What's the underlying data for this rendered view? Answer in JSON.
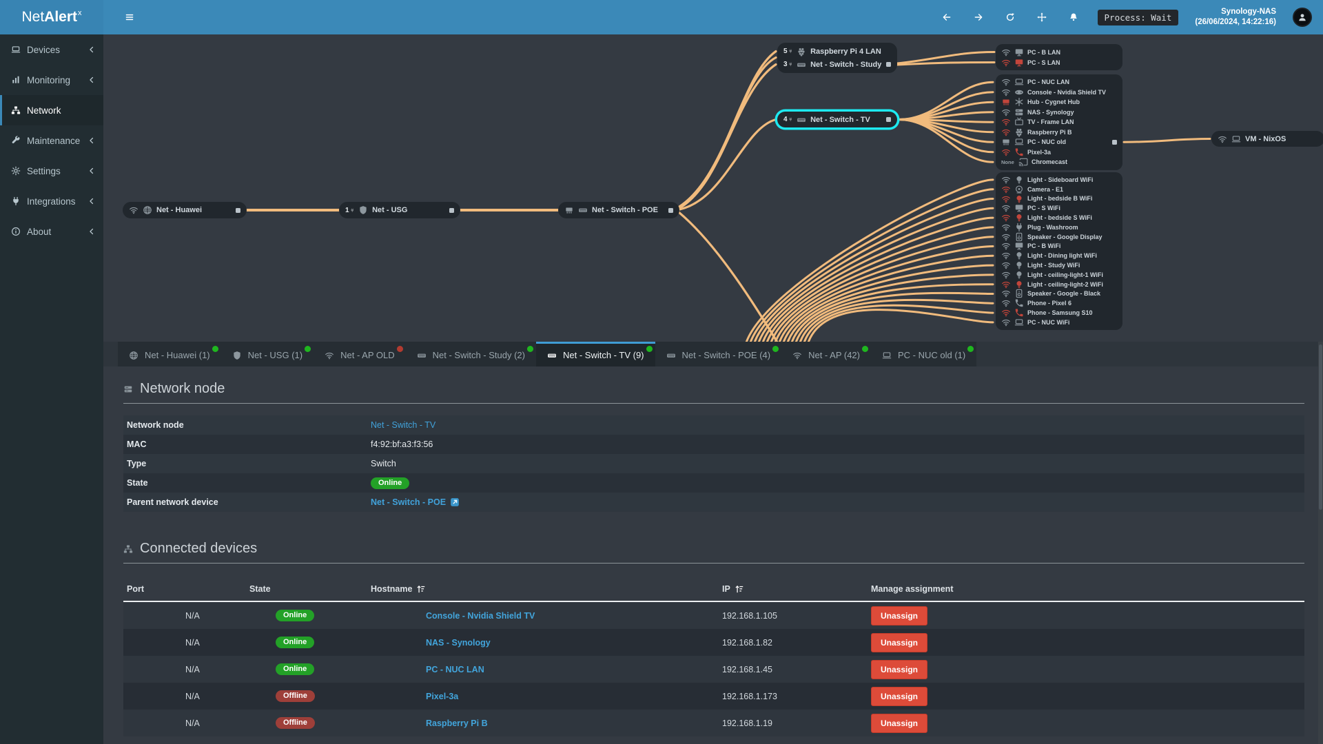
{
  "theme": {
    "accent": "#3b89b8",
    "edge": "#f1bb7d",
    "highlight": "#1de9f0",
    "online": "#23a127",
    "offline": "#9e3f39",
    "danger": "#dd4b39",
    "dot_green": "#1fb61f",
    "dot_red": "#b23b30",
    "icon_gray": "#8d979e",
    "icon_red": "#c2453b",
    "link": "#41a2da"
  },
  "navbar": {
    "brand_prefix": "Net",
    "brand_bold": "Alert",
    "brand_sup": "x",
    "actions": [
      "arrow-left",
      "arrow-right",
      "refresh",
      "move",
      "bell"
    ],
    "process_badge": "Process: Wait",
    "host": "Synology-NAS",
    "timestamp": "(26/06/2024, 14:22:16)"
  },
  "sidebar": {
    "items": [
      {
        "label": "Devices",
        "icon": "laptop",
        "chevron": true,
        "active": false
      },
      {
        "label": "Monitoring",
        "icon": "chart",
        "chevron": true,
        "active": false
      },
      {
        "label": "Network",
        "icon": "sitemap",
        "chevron": false,
        "active": true
      },
      {
        "label": "Maintenance",
        "icon": "wrench",
        "chevron": true,
        "active": false
      },
      {
        "label": "Settings",
        "icon": "gear",
        "chevron": true,
        "active": false
      },
      {
        "label": "Integrations",
        "icon": "plug",
        "chevron": true,
        "active": false
      },
      {
        "label": "About",
        "icon": "info",
        "chevron": true,
        "active": false
      }
    ]
  },
  "diagram": {
    "chain": [
      {
        "id": "huawei",
        "icons": [
          "wifi",
          "globe"
        ],
        "label": "Net - Huawei",
        "port": true
      },
      {
        "id": "usg",
        "count": "1",
        "icons": [
          "shield"
        ],
        "label": "Net - USG",
        "port": true
      },
      {
        "id": "poe",
        "icons": [
          "ethernet",
          "switch"
        ],
        "label": "Net - Switch - POE",
        "port": true
      }
    ],
    "stack": [
      {
        "count": "5",
        "icons": [
          "raspberry"
        ],
        "label": "Raspberry Pi 4 LAN",
        "port": false
      },
      {
        "count": "3",
        "icons": [
          "switch"
        ],
        "label": "Net - Switch - Study",
        "port": true
      }
    ],
    "tv": {
      "count": "4",
      "icons": [
        "switch"
      ],
      "label": "Net - Switch - TV",
      "port": true,
      "highlighted": true
    },
    "vm": {
      "icons": [
        "wifi",
        "laptop"
      ],
      "label": "VM - NixOS"
    },
    "groups": [
      {
        "id": "g1",
        "items": [
          {
            "conn": "wifi",
            "dev": "monitor",
            "label": "PC - B LAN"
          },
          {
            "conn": "wifi",
            "conn_red": true,
            "dev": "monitor",
            "dev_red": true,
            "label": "PC - S LAN"
          }
        ]
      },
      {
        "id": "g2",
        "items": [
          {
            "conn": "wifi",
            "dev": "laptop",
            "label": "PC - NUC LAN"
          },
          {
            "conn": "wifi",
            "dev": "controller",
            "label": "Console - Nvidia Shield TV"
          },
          {
            "conn": "ethernet",
            "conn_red": true,
            "dev": "hub",
            "label": "Hub - Cygnet Hub"
          },
          {
            "conn": "wifi",
            "dev": "nas",
            "label": "NAS - Synology"
          },
          {
            "conn": "wifi",
            "conn_red": true,
            "dev": "tv",
            "label": "TV - Frame LAN"
          },
          {
            "conn": "wifi",
            "conn_red": true,
            "dev": "raspberry",
            "label": "Raspberry Pi B"
          },
          {
            "conn": "ethernet",
            "dev": "laptop",
            "label": "PC - NUC old",
            "port": true
          },
          {
            "conn": "wifi",
            "conn_red": true,
            "dev": "phone",
            "dev_red": true,
            "label": "Pixel-3a"
          },
          {
            "conn_label": "None",
            "dev": "cast",
            "label": "Chromecast"
          }
        ]
      },
      {
        "id": "g3",
        "items": [
          {
            "conn": "wifi",
            "dev": "bulb",
            "label": "Light - Sideboard WiFi"
          },
          {
            "conn": "wifi",
            "conn_red": true,
            "dev": "camera",
            "label": "Camera - E1"
          },
          {
            "conn": "wifi",
            "conn_red": true,
            "dev": "bulb",
            "dev_red": true,
            "label": "Light - bedside B WiFi"
          },
          {
            "conn": "wifi",
            "dev": "monitor",
            "label": "PC - S WiFi"
          },
          {
            "conn": "wifi",
            "conn_red": true,
            "dev": "bulb",
            "dev_red": true,
            "label": "Light - bedside S WiFi"
          },
          {
            "conn": "wifi",
            "dev": "plug",
            "label": "Plug - Washroom"
          },
          {
            "conn": "wifi",
            "dev": "speaker",
            "label": "Speaker - Google Display"
          },
          {
            "conn": "wifi",
            "dev": "monitor",
            "label": "PC - B WiFi"
          },
          {
            "conn": "wifi",
            "dev": "bulb",
            "label": "Light - Dining light WiFi"
          },
          {
            "conn": "wifi",
            "dev": "bulb",
            "label": "Light - Study WiFi"
          },
          {
            "conn": "wifi",
            "dev": "bulb",
            "label": "Light - ceiling-light-1 WiFi"
          },
          {
            "conn": "wifi",
            "conn_red": true,
            "dev": "bulb",
            "dev_red": true,
            "label": "Light - ceiling-light-2 WiFi"
          },
          {
            "conn": "wifi",
            "dev": "speaker",
            "label": "Speaker - Google - Black"
          },
          {
            "conn": "wifi",
            "dev": "phone",
            "label": "Phone - Pixel 6"
          },
          {
            "conn": "wifi",
            "conn_red": true,
            "dev": "phone",
            "dev_red": true,
            "label": "Phone - Samsung S10"
          },
          {
            "conn": "wifi",
            "dev": "laptop",
            "label": "PC - NUC WiFi"
          }
        ]
      }
    ]
  },
  "tabs": [
    {
      "icon": "globe",
      "label": "Net - Huawei (1)",
      "dot": "green",
      "active": false
    },
    {
      "icon": "shield",
      "label": "Net - USG (1)",
      "dot": "green",
      "active": false
    },
    {
      "icon": "wifi",
      "label": "Net - AP OLD",
      "dot": "red",
      "active": false
    },
    {
      "icon": "switch",
      "label": "Net - Switch - Study (2)",
      "dot": "green",
      "active": false
    },
    {
      "icon": "switch",
      "label": "Net - Switch - TV (9)",
      "dot": "green",
      "active": true
    },
    {
      "icon": "switch",
      "label": "Net - Switch - POE (4)",
      "dot": "green",
      "active": false
    },
    {
      "icon": "wifi",
      "label": "Net - AP (42)",
      "dot": "green",
      "active": false
    },
    {
      "icon": "nuc",
      "label": "PC - NUC old (1)",
      "dot": "green",
      "active": false
    }
  ],
  "node_section": {
    "title": "Network node",
    "icon": "server",
    "rows": [
      {
        "label": "Network node",
        "value": "Net - Switch - TV",
        "kind": "link"
      },
      {
        "label": "MAC",
        "value": "f4:92:bf:a3:f3:56",
        "kind": "text"
      },
      {
        "label": "Type",
        "value": "Switch",
        "kind": "text"
      },
      {
        "label": "State",
        "value": "Online",
        "kind": "badge"
      },
      {
        "label": "Parent network device",
        "value": "Net - Switch - POE",
        "kind": "link-ext"
      }
    ]
  },
  "devices_section": {
    "title": "Connected devices",
    "icon": "sitemap",
    "headers": [
      {
        "label": "Port",
        "sort": false
      },
      {
        "label": "State",
        "sort": false
      },
      {
        "label": "Hostname",
        "sort": true
      },
      {
        "label": "IP",
        "sort": true
      },
      {
        "label": "Manage assignment",
        "sort": false
      }
    ],
    "action_label": "Unassign",
    "rows": [
      {
        "port": "N/A",
        "state": "Online",
        "hostname": "Console - Nvidia Shield TV",
        "ip": "192.168.1.105"
      },
      {
        "port": "N/A",
        "state": "Online",
        "hostname": "NAS - Synology",
        "ip": "192.168.1.82"
      },
      {
        "port": "N/A",
        "state": "Online",
        "hostname": "PC - NUC LAN",
        "ip": "192.168.1.45"
      },
      {
        "port": "N/A",
        "state": "Offline",
        "hostname": "Pixel-3a",
        "ip": "192.168.1.173"
      },
      {
        "port": "N/A",
        "state": "Offline",
        "hostname": "Raspberry Pi B",
        "ip": "192.168.1.19"
      }
    ]
  }
}
